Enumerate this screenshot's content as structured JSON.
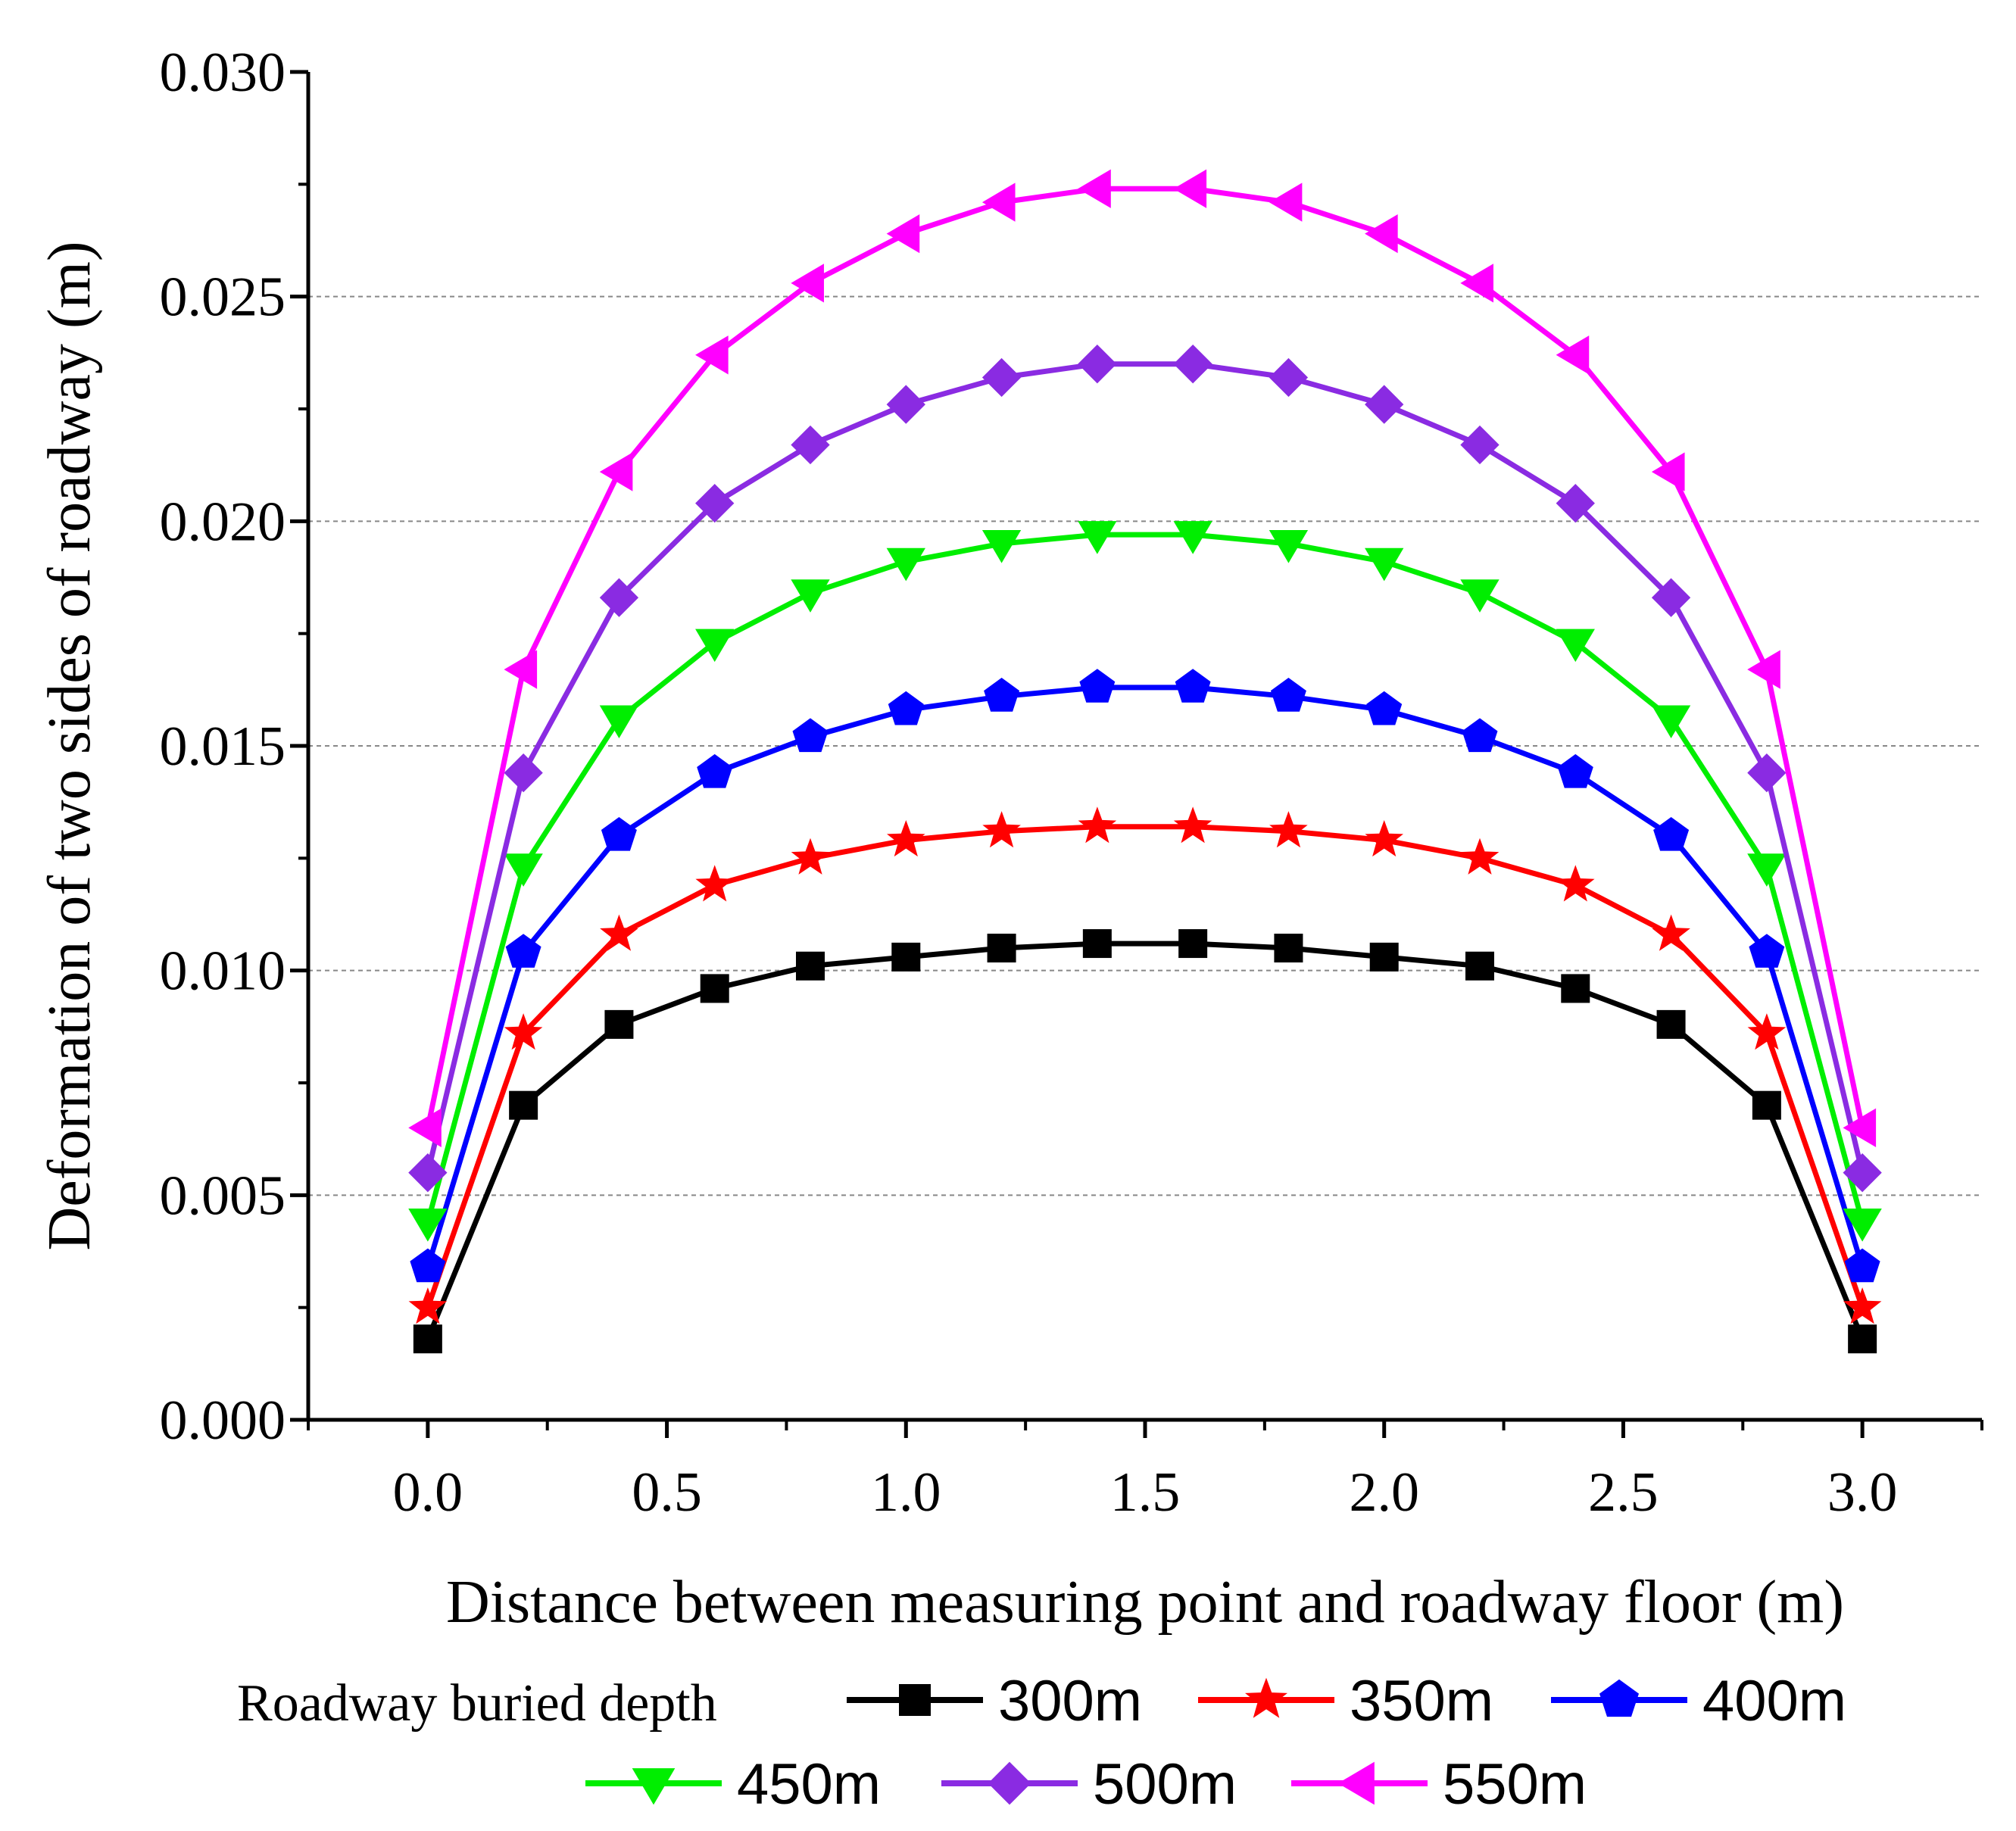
{
  "chart_data": {
    "type": "line",
    "title": "",
    "xlabel": "Distance between measuring point and roadway floor (m)",
    "ylabel": "Deformation of two sides of roadway (m)",
    "xlim": [
      -0.25,
      3.25
    ],
    "ylim": [
      0.0,
      0.03
    ],
    "grid": "horizontal-dashed",
    "x_ticks": [
      "0.0",
      "0.5",
      "1.0",
      "1.5",
      "2.0",
      "2.5",
      "3.0"
    ],
    "y_ticks": [
      "0.000",
      "0.005",
      "0.010",
      "0.015",
      "0.020",
      "0.025",
      "0.030"
    ],
    "legend_title": "Roadway buried depth",
    "legend_position": "bottom",
    "x": [
      0.0,
      0.2,
      0.4,
      0.6,
      0.8,
      1.0,
      1.2,
      1.4,
      1.6,
      1.8,
      2.0,
      2.2,
      2.4,
      2.6,
      2.8,
      3.0
    ],
    "series": [
      {
        "name": "300m",
        "color": "#000000",
        "marker": "square",
        "values": [
          0.0018,
          0.007,
          0.0088,
          0.0096,
          0.0101,
          0.0103,
          0.0105,
          0.0106,
          0.0106,
          0.0105,
          0.0103,
          0.0101,
          0.0096,
          0.0088,
          0.007,
          0.0018
        ]
      },
      {
        "name": "350m",
        "color": "#ff0000",
        "marker": "star",
        "values": [
          0.0025,
          0.0086,
          0.0108,
          0.0119,
          0.0125,
          0.0129,
          0.0131,
          0.0132,
          0.0132,
          0.0131,
          0.0129,
          0.0125,
          0.0119,
          0.0108,
          0.0086,
          0.0025
        ]
      },
      {
        "name": "400m",
        "color": "#0000ff",
        "marker": "pentagon",
        "values": [
          0.0034,
          0.0104,
          0.013,
          0.0144,
          0.0152,
          0.0158,
          0.0161,
          0.0163,
          0.0163,
          0.0161,
          0.0158,
          0.0152,
          0.0144,
          0.013,
          0.0104,
          0.0034
        ]
      },
      {
        "name": "450m",
        "color": "#00ee00",
        "marker": "triangle-down",
        "values": [
          0.0044,
          0.0123,
          0.0156,
          0.0173,
          0.0184,
          0.0191,
          0.0195,
          0.0197,
          0.0197,
          0.0195,
          0.0191,
          0.0184,
          0.0173,
          0.0156,
          0.0123,
          0.0044
        ]
      },
      {
        "name": "500m",
        "color": "#8a2be2",
        "marker": "diamond",
        "values": [
          0.0055,
          0.0144,
          0.0183,
          0.0204,
          0.0217,
          0.0226,
          0.0232,
          0.0235,
          0.0235,
          0.0232,
          0.0226,
          0.0217,
          0.0204,
          0.0183,
          0.0144,
          0.0055
        ]
      },
      {
        "name": "550m",
        "color": "#ff00ff",
        "marker": "triangle-left",
        "values": [
          0.0065,
          0.0167,
          0.0211,
          0.0237,
          0.0253,
          0.0264,
          0.0271,
          0.0274,
          0.0274,
          0.0271,
          0.0264,
          0.0253,
          0.0237,
          0.0211,
          0.0167,
          0.0065
        ]
      }
    ]
  }
}
